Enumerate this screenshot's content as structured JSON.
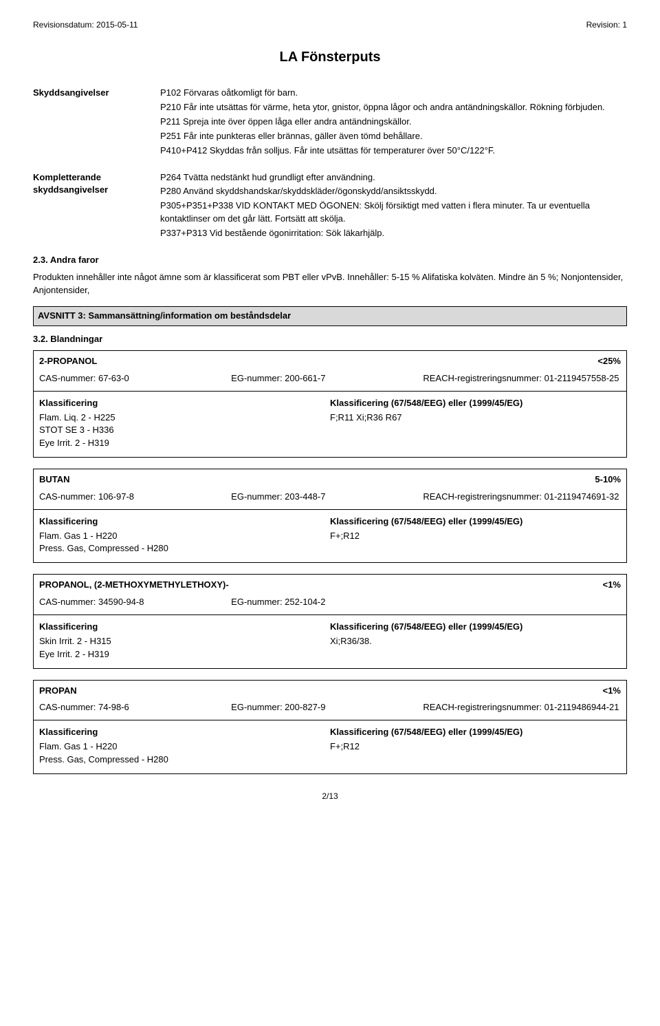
{
  "meta": {
    "revision_date_label": "Revisionsdatum: 2015-05-11",
    "revision_label": "Revision: 1"
  },
  "title": "LA Fönsterputs",
  "skydd": {
    "label": "Skyddsangivelser",
    "lines": [
      "P102 Förvaras oåtkomligt för barn.",
      "P210 Får inte utsättas för värme, heta ytor, gnistor, öppna lågor och andra antändningskällor. Rökning förbjuden.",
      "P211 Spreja inte över öppen låga eller andra antändningskällor.",
      "P251 Får inte punkteras eller brännas, gäller även tömd behållare.",
      "P410+P412 Skyddas från solljus. Får inte utsättas för temperaturer över 50°C/122°F."
    ]
  },
  "kompl": {
    "label": "Kompletterande skyddsangivelser",
    "lines": [
      "P264 Tvätta nedstänkt hud grundligt efter användning.",
      "P280 Använd  skyddshandskar/skyddskläder/ögonskydd/ansiktsskydd.",
      "P305+P351+P338 VID KONTAKT MED ÖGONEN: Skölj försiktigt med vatten i flera minuter. Ta ur eventuella kontaktlinser om det går lätt. Fortsätt att skölja.",
      "P337+P313 Vid bestående ögonirritation: Sök läkarhjälp."
    ]
  },
  "s23": {
    "heading": "2.3. Andra faror",
    "text": "Produkten innehåller inte något ämne som är klassificerat som PBT eller vPvB. Innehåller: 5-15 % Alifatiska kolväten. Mindre än 5 %; Nonjontensider, Anjontensider,"
  },
  "section3_bar": "AVSNITT 3: Sammansättning/information om beståndsdelar",
  "s32_heading": "3.2. Blandningar",
  "class_left_hd": "Klassificering",
  "class_right_hd": "Klassificering (67/548/EEG) eller (1999/45/EG)",
  "sub1": {
    "name": "2-PROPANOL",
    "pct": "<25%",
    "cas": "CAS-nummer: 67-63-0",
    "eg": "EG-nummer: 200-661-7",
    "reach": "REACH-registreringsnummer: 01-2119457558-25",
    "left": [
      "Flam. Liq. 2 - H225",
      "STOT SE 3 - H336",
      "Eye Irrit. 2 - H319"
    ],
    "right": [
      "F;R11 Xi;R36 R67"
    ]
  },
  "sub2": {
    "name": "BUTAN",
    "pct": "5-10%",
    "cas": "CAS-nummer: 106-97-8",
    "eg": "EG-nummer: 203-448-7",
    "reach": "REACH-registreringsnummer: 01-2119474691-32",
    "left": [
      "Flam. Gas 1 - H220",
      "Press. Gas, Compressed - H280"
    ],
    "right": [
      "F+;R12"
    ]
  },
  "sub3": {
    "name": "PROPANOL, (2-METHOXYMETHYLETHOXY)-",
    "pct": "<1%",
    "cas": "CAS-nummer: 34590-94-8",
    "eg": "EG-nummer: 252-104-2",
    "reach": "",
    "left": [
      "Skin Irrit. 2 - H315",
      "Eye Irrit. 2 - H319"
    ],
    "right": [
      "Xi;R36/38."
    ]
  },
  "sub4": {
    "name": "PROPAN",
    "pct": "<1%",
    "cas": "CAS-nummer: 74-98-6",
    "eg": "EG-nummer: 200-827-9",
    "reach": "REACH-registreringsnummer: 01-2119486944-21",
    "left": [
      "Flam. Gas 1 - H220",
      "Press. Gas, Compressed - H280"
    ],
    "right": [
      "F+;R12"
    ]
  },
  "footer": "2/13"
}
